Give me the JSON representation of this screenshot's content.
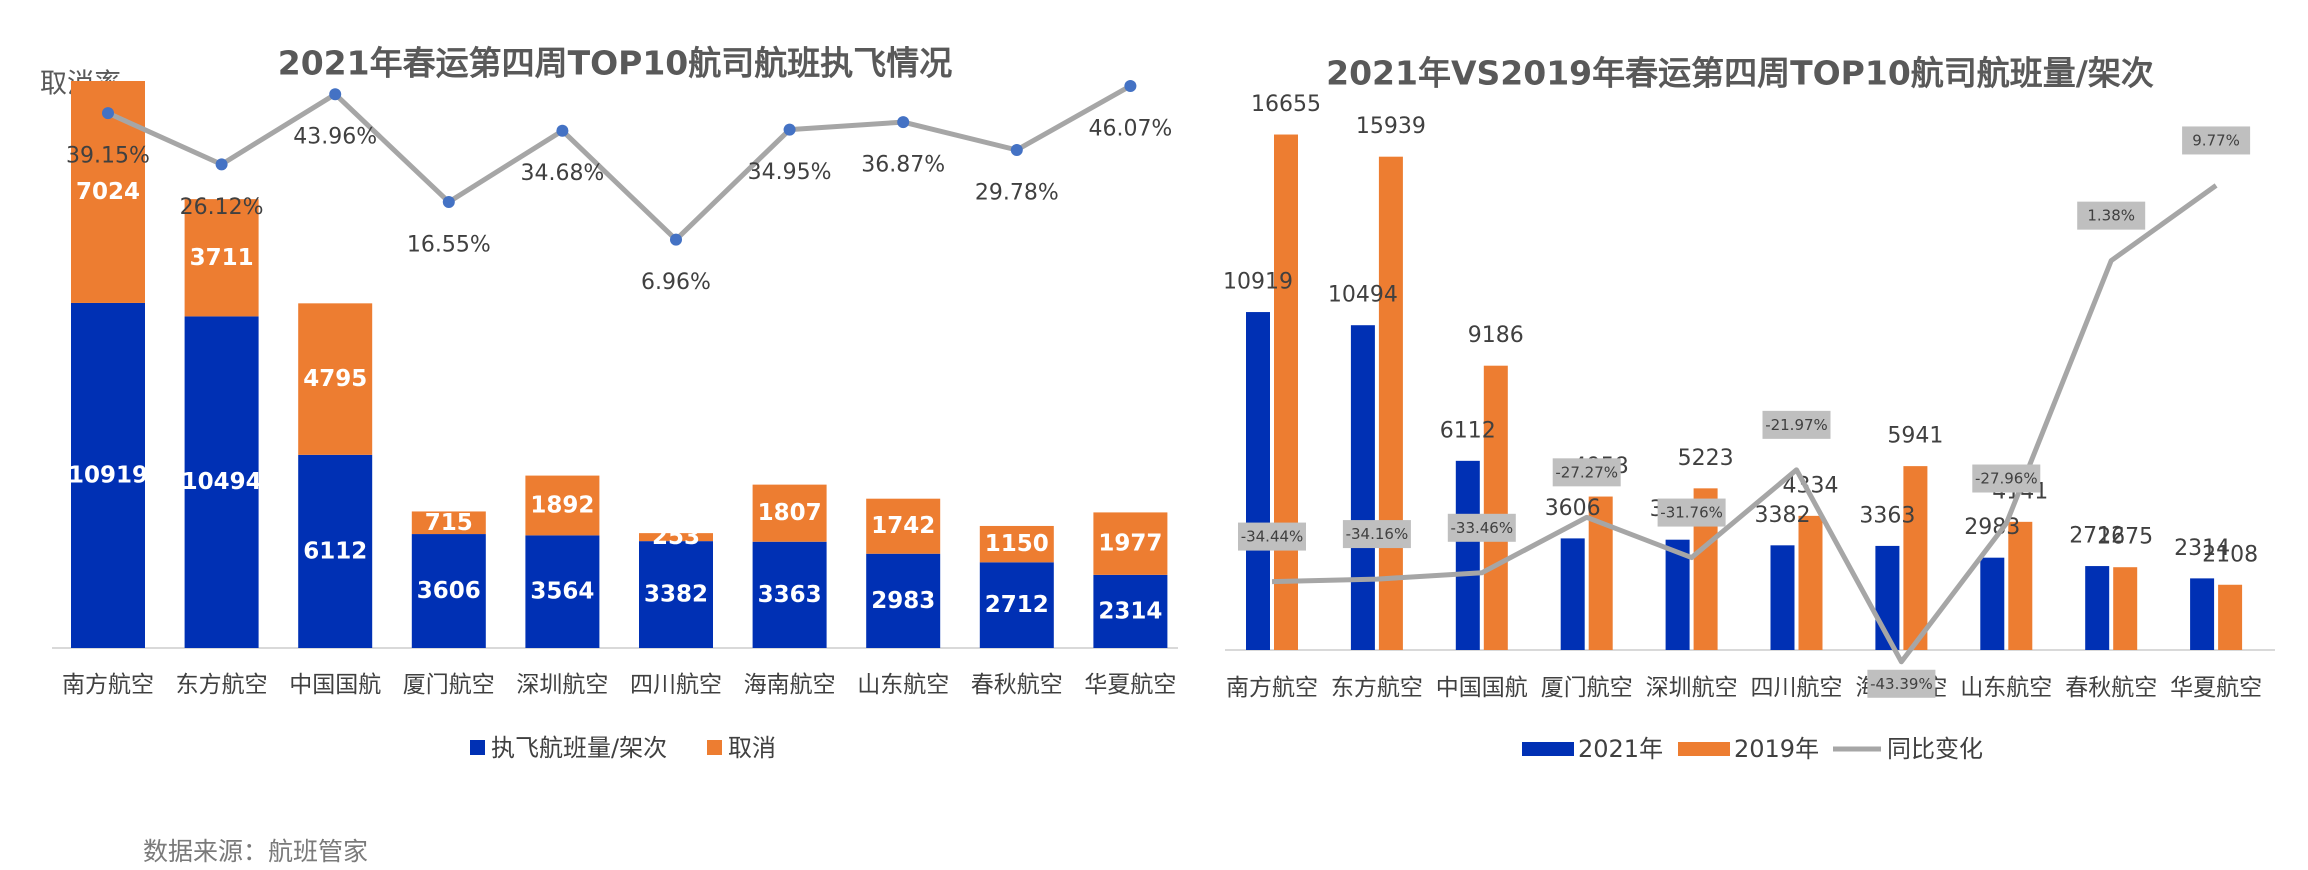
{
  "source": "数据来源：航班管家",
  "chart_data": [
    {
      "type": "bar",
      "stacked": true,
      "title": "2021年春运第四周TOP10航司航班执飞情况",
      "secondary_axis_label": "取消率",
      "categories": [
        "南方航空",
        "东方航空",
        "中国国航",
        "厦门航空",
        "深圳航空",
        "四川航空",
        "海南航空",
        "山东航空",
        "春秋航空",
        "华夏航空"
      ],
      "series": [
        {
          "name": "执飞航班量/架次",
          "color": "#0030b4",
          "values": [
            10919,
            10494,
            6112,
            3606,
            3564,
            3382,
            3363,
            2983,
            2712,
            2314
          ]
        },
        {
          "name": "取消",
          "color": "#ed7d31",
          "values": [
            7024,
            3711,
            4795,
            715,
            1892,
            253,
            1807,
            1742,
            1150,
            1977
          ]
        }
      ],
      "line": {
        "name": "取消率",
        "color": "#a6a6a6",
        "marker_color": "#4472c4",
        "values": [
          39.15,
          26.12,
          43.96,
          16.55,
          34.68,
          6.96,
          34.95,
          36.87,
          29.78,
          46.07
        ],
        "labels": [
          "39.15%",
          "26.12%",
          "43.96%",
          "16.55%",
          "34.68%",
          "6.96%",
          "34.95%",
          "36.87%",
          "29.78%",
          "46.07%"
        ]
      },
      "ylim": [
        0,
        19000
      ],
      "legend": "bottom"
    },
    {
      "type": "bar",
      "title": "2021年VS2019年春运第四周TOP10航司航班量/架次",
      "categories": [
        "南方航空",
        "东方航空",
        "中国国航",
        "厦门航空",
        "深圳航空",
        "四川航空",
        "海南航空",
        "山东航空",
        "春秋航空",
        "华夏航空"
      ],
      "series": [
        {
          "name": "2021年",
          "color": "#0030b4",
          "values": [
            10919,
            10494,
            6112,
            3606,
            3564,
            3382,
            3363,
            2983,
            2712,
            2314
          ]
        },
        {
          "name": "2019年",
          "color": "#ed7d31",
          "values": [
            16655,
            15939,
            9186,
            4958,
            5223,
            4334,
            5941,
            4141,
            2675,
            2108
          ]
        }
      ],
      "line": {
        "name": "同比变化",
        "color": "#a6a6a6",
        "values": [
          -34.44,
          -34.16,
          -33.46,
          -27.27,
          -31.76,
          -21.97,
          -43.39,
          -27.96,
          1.38,
          9.77
        ],
        "labels": [
          "-34.44%",
          "-34.16%",
          "-33.46%",
          "-27.27%",
          "-31.76%",
          "-21.97%",
          "-43.39%",
          "-27.96%",
          "1.38%",
          "9.77%"
        ]
      },
      "ylim": [
        0,
        18000
      ],
      "legend": "bottom"
    }
  ]
}
